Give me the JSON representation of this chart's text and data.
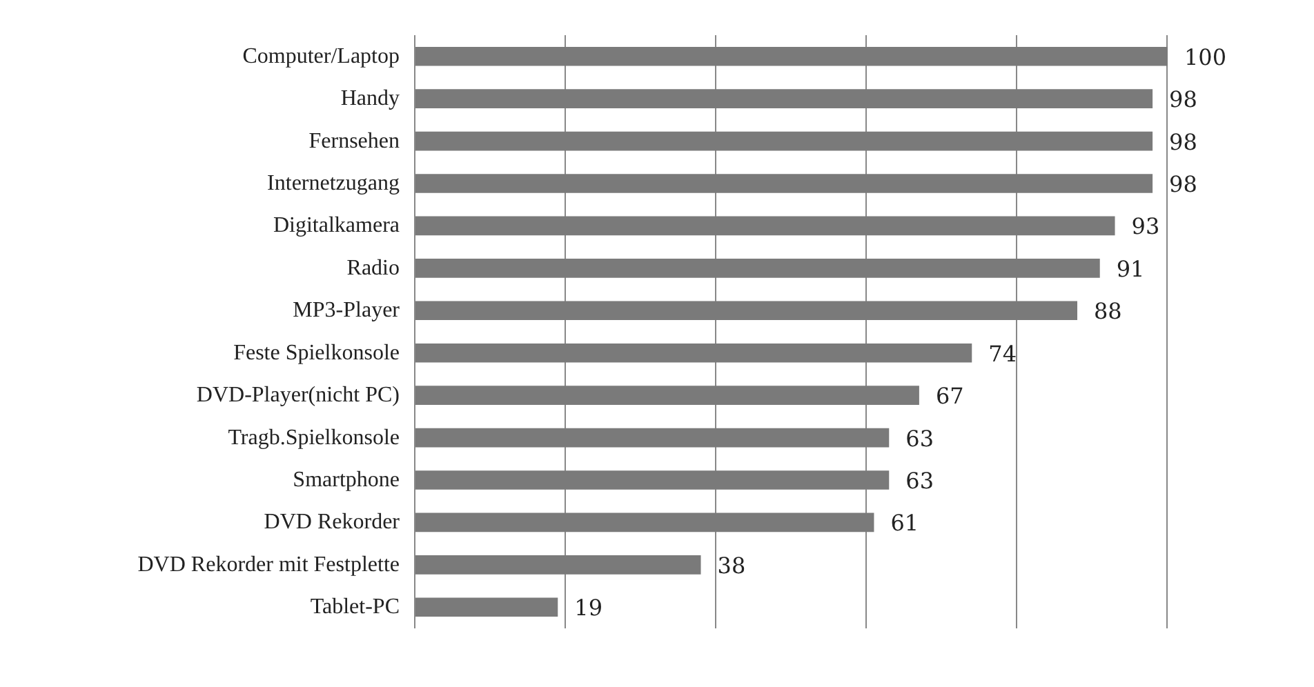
{
  "chart_data": {
    "type": "bar",
    "orientation": "horizontal",
    "categories": [
      "Computer/Laptop",
      "Handy",
      "Fernsehen",
      "Internetzugang",
      "Digitalkamera",
      "Radio",
      "MP3-Player",
      "Feste Spielkonsole",
      "DVD-Player(nicht PC)",
      "Tragb.Spielkonsole",
      "Smartphone",
      "DVD Rekorder",
      "DVD Rekorder mit Festplette",
      "Tablet-PC"
    ],
    "values": [
      100,
      98,
      98,
      98,
      93,
      91,
      88,
      74,
      67,
      63,
      63,
      61,
      38,
      19
    ],
    "color": "#7a7a7a",
    "grid": "x",
    "tick_labels": "y",
    "data_labels": true
  }
}
